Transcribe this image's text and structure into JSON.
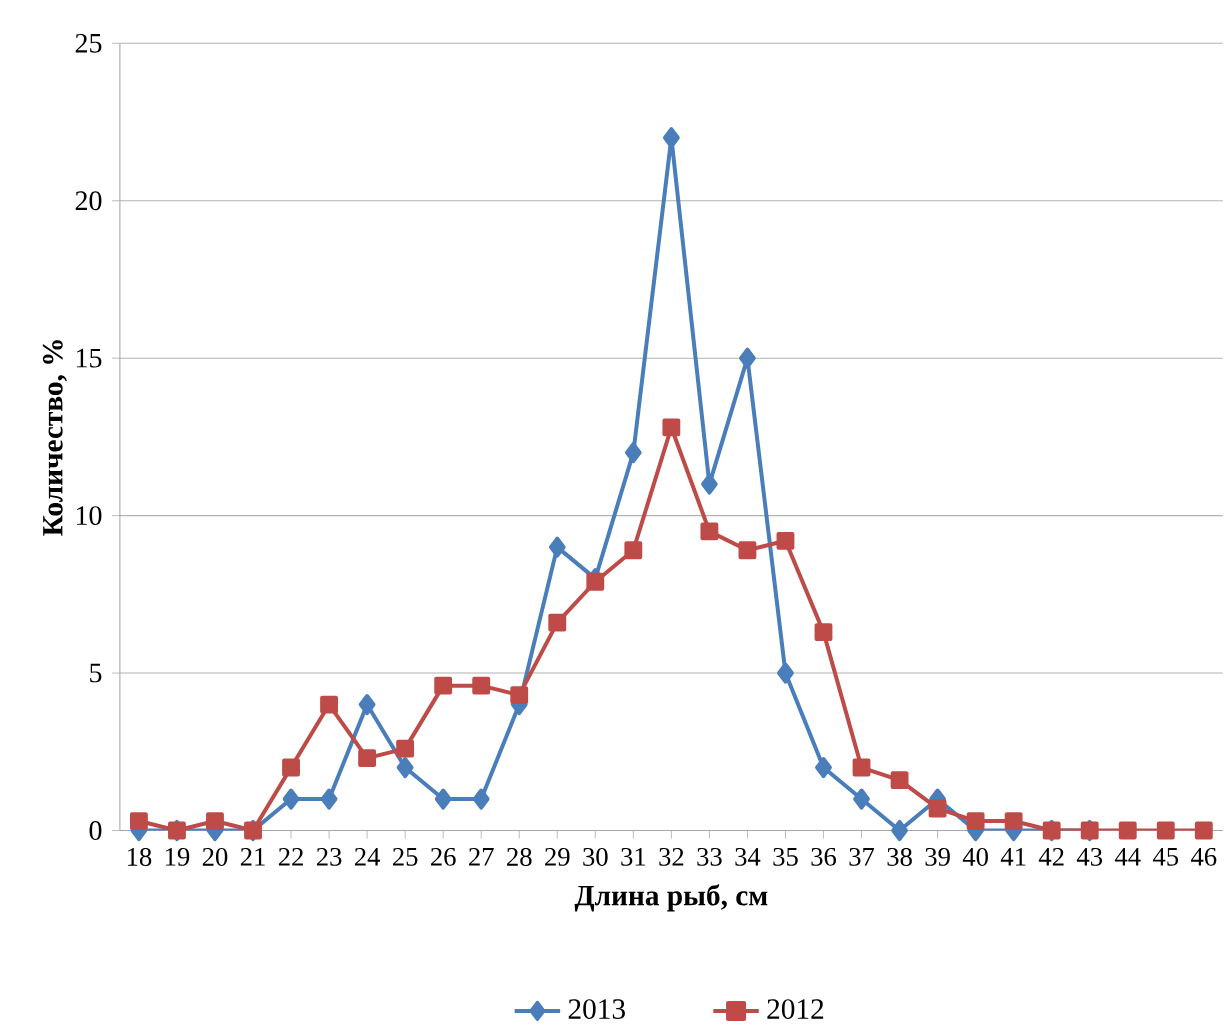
{
  "chart_data": {
    "type": "line",
    "xlabel": "Длина рыб, см",
    "ylabel": "Количество, %",
    "categories": [
      "18",
      "19",
      "20",
      "21",
      "22",
      "23",
      "24",
      "25",
      "26",
      "27",
      "28",
      "29",
      "30",
      "31",
      "32",
      "33",
      "34",
      "35",
      "36",
      "37",
      "38",
      "39",
      "40",
      "41",
      "42",
      "43",
      "44",
      "45",
      "46"
    ],
    "series": [
      {
        "name": "2013",
        "color": "#4a7ebb",
        "marker": "diamond",
        "values": [
          0,
          0,
          0,
          0,
          1,
          1,
          4,
          2,
          1,
          1,
          4,
          9,
          8,
          12,
          22,
          11,
          15,
          5,
          2,
          1,
          0,
          1,
          0,
          0,
          0,
          0,
          null,
          null,
          null
        ]
      },
      {
        "name": "2012",
        "color": "#be4b48",
        "marker": "square",
        "values": [
          0.3,
          0,
          0.3,
          0,
          2,
          4,
          2.3,
          2.6,
          4.6,
          4.6,
          4.3,
          6.6,
          7.9,
          8.9,
          12.8,
          9.5,
          8.9,
          9.2,
          6.3,
          2,
          1.6,
          0.7,
          0.3,
          0.3,
          0,
          0,
          0,
          0,
          0
        ]
      }
    ],
    "ylim": [
      0,
      25
    ],
    "yticks": [
      0,
      5,
      10,
      15,
      20,
      25
    ],
    "grid": "y",
    "legend": "bottom"
  }
}
